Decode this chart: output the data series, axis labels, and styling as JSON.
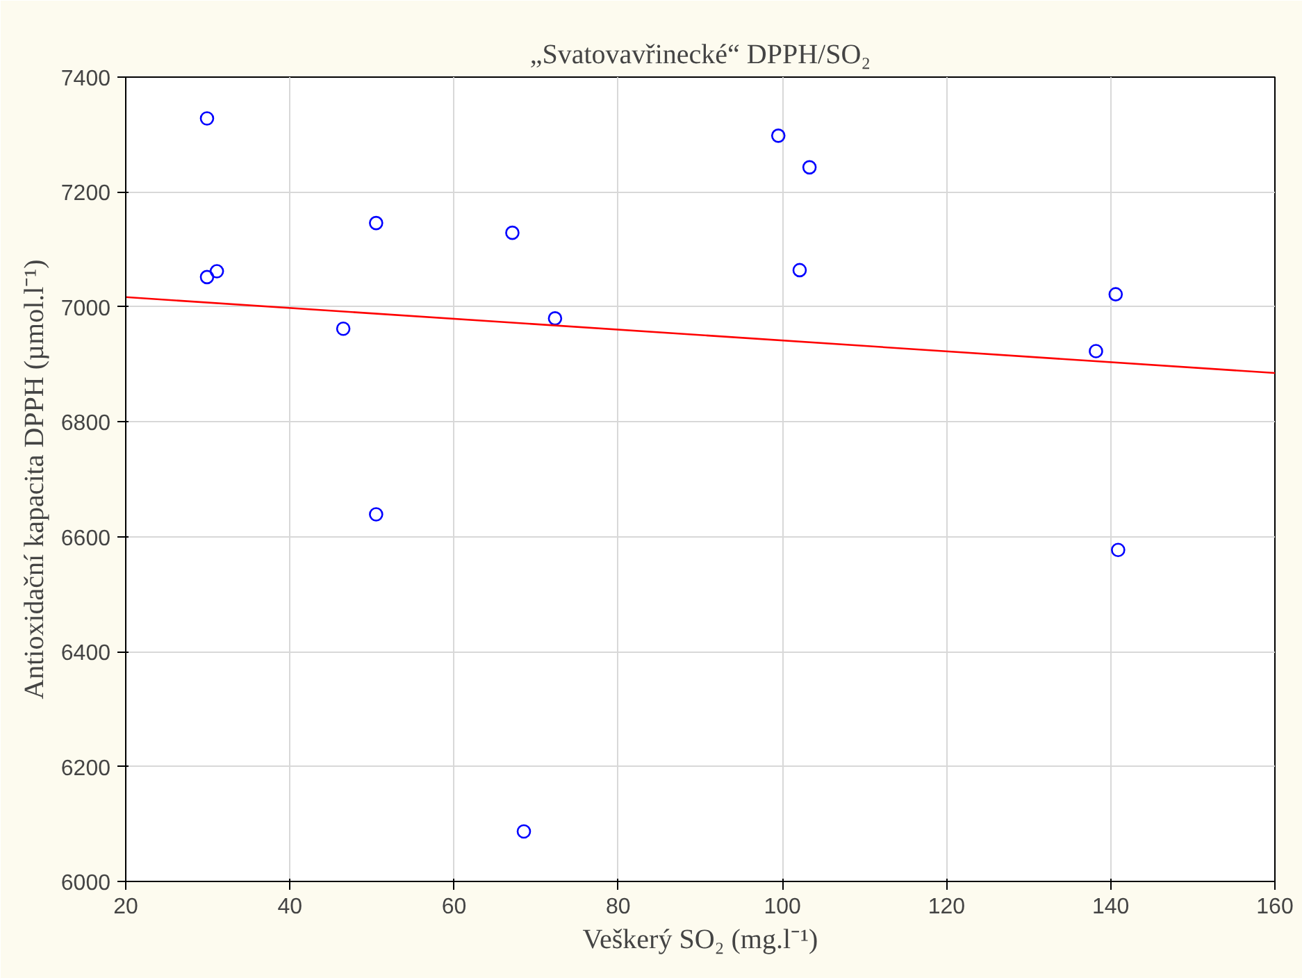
{
  "chart_data": {
    "type": "scatter",
    "title": "„Svatovavřinecké“ DPPH/SO₂",
    "xlabel": "Veškerý SO₂ (mg.l⁻¹)",
    "ylabel": "Antioxidační kapacita DPPH (µmol.l⁻¹)",
    "xlim": [
      20,
      160
    ],
    "xticks": [
      20,
      40,
      60,
      80,
      100,
      120,
      140,
      160
    ],
    "ylim": [
      6000,
      7400
    ],
    "yticks": [
      6000,
      6200,
      6400,
      6600,
      6800,
      7000,
      7200,
      7400
    ],
    "grid": true,
    "series": [
      {
        "marker": "circle",
        "color": "#0000ff",
        "x": [
          29.9,
          29.9,
          31.1,
          46.5,
          50.5,
          50.5,
          67.1,
          72.3,
          68.5,
          99.5,
          103.3,
          102.1,
          140.6,
          138.2,
          140.9
        ],
        "values": [
          7328,
          7052,
          7062,
          6962,
          7146,
          6639,
          7129,
          6980,
          6087,
          7298,
          7243,
          7064,
          7022,
          6923,
          6577
        ]
      },
      {
        "type": "line",
        "color": "#ff0000",
        "x": [
          20,
          160
        ],
        "values": [
          7017,
          6885
        ]
      }
    ]
  }
}
